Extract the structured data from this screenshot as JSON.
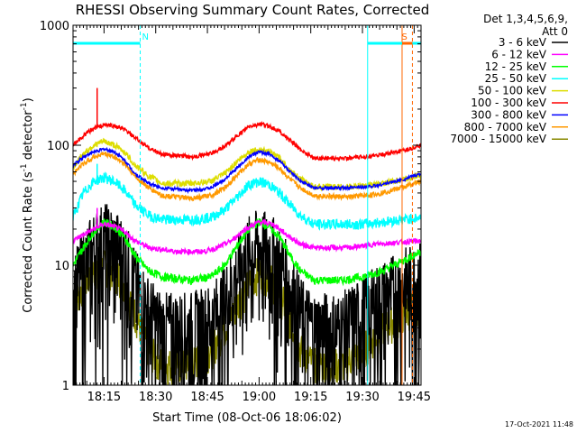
{
  "chart_data": {
    "type": "line",
    "title": "RHESSI Observing Summary Count Rates, Corrected",
    "xlabel": "Start Time (08-Oct-06 18:06:02)",
    "ylabel_parts": [
      "Corrected Count Rate (s",
      "-1",
      " detector",
      "-1",
      ")"
    ],
    "yscale": "log",
    "ylim": [
      1,
      1000
    ],
    "xlim_minutes": [
      0,
      101
    ],
    "x_ticks": [
      {
        "t": 9,
        "label": "18:15"
      },
      {
        "t": 24,
        "label": "18:30"
      },
      {
        "t": 39,
        "label": "18:45"
      },
      {
        "t": 54,
        "label": "19:00"
      },
      {
        "t": 69,
        "label": "19:15"
      },
      {
        "t": 84,
        "label": "19:30"
      },
      {
        "t": 99,
        "label": "19:45"
      }
    ],
    "y_ticks": [
      {
        "v": 1,
        "label": "1"
      },
      {
        "v": 10,
        "label": "10"
      },
      {
        "v": 100,
        "label": "100"
      },
      {
        "v": 1000,
        "label": "1000"
      }
    ],
    "legend": {
      "title": "Det 1,3,4,5,6,9,",
      "subtitle": "Att 0",
      "position": "right"
    },
    "series": [
      {
        "name": "3 - 6 keV",
        "color": "#000000",
        "amp": 1.0,
        "points": [
          [
            0,
            6
          ],
          [
            3,
            10
          ],
          [
            6,
            14
          ],
          [
            9,
            17
          ],
          [
            12,
            15
          ],
          [
            15,
            12
          ],
          [
            18,
            7
          ],
          [
            22,
            4
          ],
          [
            26,
            3
          ],
          [
            34,
            3
          ],
          [
            40,
            3.5
          ],
          [
            44,
            5
          ],
          [
            48,
            9
          ],
          [
            51,
            13
          ],
          [
            54,
            15
          ],
          [
            58,
            13
          ],
          [
            62,
            8
          ],
          [
            66,
            4
          ],
          [
            70,
            3
          ],
          [
            78,
            3
          ],
          [
            81,
            3.5
          ],
          [
            84,
            4
          ],
          [
            88,
            5
          ],
          [
            92,
            6
          ],
          [
            96,
            7
          ],
          [
            101,
            8
          ]
        ]
      },
      {
        "name": "6 - 12 keV",
        "color": "#ff00ff",
        "amp": 0.05,
        "points": [
          [
            0,
            16
          ],
          [
            3,
            18
          ],
          [
            6,
            20
          ],
          [
            9,
            22
          ],
          [
            12,
            21
          ],
          [
            15,
            19
          ],
          [
            18,
            16
          ],
          [
            22,
            14
          ],
          [
            30,
            13
          ],
          [
            38,
            13
          ],
          [
            42,
            14
          ],
          [
            46,
            16
          ],
          [
            50,
            20
          ],
          [
            54,
            23
          ],
          [
            58,
            22
          ],
          [
            62,
            18
          ],
          [
            66,
            15
          ],
          [
            70,
            14
          ],
          [
            80,
            14
          ],
          [
            88,
            15
          ],
          [
            101,
            16
          ]
        ]
      },
      {
        "name": "12 - 25 keV",
        "color": "#00ff00",
        "amp": 0.08,
        "points": [
          [
            0,
            10
          ],
          [
            3,
            14
          ],
          [
            6,
            19
          ],
          [
            9,
            23
          ],
          [
            12,
            21
          ],
          [
            15,
            17
          ],
          [
            18,
            12
          ],
          [
            22,
            9
          ],
          [
            26,
            8
          ],
          [
            34,
            7.5
          ],
          [
            40,
            8
          ],
          [
            44,
            10
          ],
          [
            48,
            15
          ],
          [
            51,
            20
          ],
          [
            54,
            23
          ],
          [
            57,
            21
          ],
          [
            60,
            17
          ],
          [
            63,
            12
          ],
          [
            66,
            9
          ],
          [
            70,
            7.5
          ],
          [
            78,
            7.5
          ],
          [
            84,
            8
          ],
          [
            90,
            9
          ],
          [
            96,
            11
          ],
          [
            101,
            13
          ]
        ]
      },
      {
        "name": "25 - 50 keV",
        "color": "#00ffff",
        "amp": 0.1,
        "points": [
          [
            0,
            25
          ],
          [
            3,
            40
          ],
          [
            6,
            50
          ],
          [
            9,
            54
          ],
          [
            12,
            50
          ],
          [
            15,
            42
          ],
          [
            18,
            32
          ],
          [
            22,
            26
          ],
          [
            26,
            24
          ],
          [
            34,
            24
          ],
          [
            40,
            25
          ],
          [
            44,
            29
          ],
          [
            48,
            38
          ],
          [
            51,
            47
          ],
          [
            54,
            50
          ],
          [
            57,
            47
          ],
          [
            60,
            40
          ],
          [
            63,
            32
          ],
          [
            66,
            26
          ],
          [
            70,
            22
          ],
          [
            78,
            22
          ],
          [
            84,
            22
          ],
          [
            90,
            23
          ],
          [
            101,
            25
          ]
        ]
      },
      {
        "name": "50 - 100 keV",
        "color": "#dddd00",
        "amp": 0.06,
        "points": [
          [
            0,
            65
          ],
          [
            3,
            85
          ],
          [
            6,
            100
          ],
          [
            9,
            108
          ],
          [
            12,
            100
          ],
          [
            15,
            88
          ],
          [
            18,
            68
          ],
          [
            22,
            55
          ],
          [
            26,
            48
          ],
          [
            34,
            48
          ],
          [
            40,
            50
          ],
          [
            44,
            58
          ],
          [
            48,
            75
          ],
          [
            51,
            88
          ],
          [
            54,
            92
          ],
          [
            57,
            88
          ],
          [
            60,
            78
          ],
          [
            63,
            62
          ],
          [
            66,
            52
          ],
          [
            70,
            45
          ],
          [
            80,
            45
          ],
          [
            88,
            47
          ],
          [
            96,
            52
          ],
          [
            101,
            57
          ]
        ]
      },
      {
        "name": "100 - 300 keV",
        "color": "#ff0000",
        "amp": 0.04,
        "points": [
          [
            0,
            100
          ],
          [
            3,
            120
          ],
          [
            6,
            138
          ],
          [
            9,
            148
          ],
          [
            12,
            145
          ],
          [
            15,
            135
          ],
          [
            18,
            115
          ],
          [
            22,
            95
          ],
          [
            26,
            84
          ],
          [
            34,
            80
          ],
          [
            40,
            85
          ],
          [
            44,
            98
          ],
          [
            48,
            122
          ],
          [
            51,
            142
          ],
          [
            54,
            150
          ],
          [
            57,
            145
          ],
          [
            60,
            130
          ],
          [
            63,
            110
          ],
          [
            66,
            92
          ],
          [
            70,
            78
          ],
          [
            80,
            78
          ],
          [
            88,
            82
          ],
          [
            96,
            90
          ],
          [
            101,
            100
          ]
        ]
      },
      {
        "name": "300 - 800 keV",
        "color": "#0000ff",
        "amp": 0.03,
        "points": [
          [
            0,
            68
          ],
          [
            3,
            80
          ],
          [
            6,
            88
          ],
          [
            9,
            93
          ],
          [
            12,
            88
          ],
          [
            15,
            75
          ],
          [
            18,
            58
          ],
          [
            22,
            48
          ],
          [
            26,
            44
          ],
          [
            34,
            42
          ],
          [
            40,
            44
          ],
          [
            44,
            52
          ],
          [
            48,
            66
          ],
          [
            51,
            80
          ],
          [
            54,
            88
          ],
          [
            57,
            84
          ],
          [
            60,
            74
          ],
          [
            63,
            60
          ],
          [
            66,
            50
          ],
          [
            70,
            44
          ],
          [
            80,
            44
          ],
          [
            88,
            46
          ],
          [
            96,
            52
          ],
          [
            101,
            58
          ]
        ]
      },
      {
        "name": "800 - 7000 keV",
        "color": "#ff9900",
        "amp": 0.05,
        "points": [
          [
            0,
            58
          ],
          [
            3,
            70
          ],
          [
            6,
            80
          ],
          [
            9,
            85
          ],
          [
            12,
            80
          ],
          [
            15,
            70
          ],
          [
            18,
            55
          ],
          [
            22,
            44
          ],
          [
            26,
            38
          ],
          [
            34,
            36
          ],
          [
            40,
            38
          ],
          [
            44,
            44
          ],
          [
            48,
            58
          ],
          [
            51,
            70
          ],
          [
            54,
            76
          ],
          [
            57,
            72
          ],
          [
            60,
            64
          ],
          [
            63,
            52
          ],
          [
            66,
            44
          ],
          [
            70,
            38
          ],
          [
            80,
            37
          ],
          [
            88,
            39
          ],
          [
            96,
            45
          ],
          [
            101,
            50
          ]
        ]
      },
      {
        "name": "7000 - 15000 keV",
        "color": "#888800",
        "amp": 0.35,
        "points": [
          [
            0,
            5
          ],
          [
            3,
            7
          ],
          [
            6,
            9
          ],
          [
            9,
            10
          ],
          [
            12,
            9
          ],
          [
            15,
            7
          ],
          [
            18,
            4
          ],
          [
            22,
            2
          ],
          [
            26,
            1.5
          ],
          [
            34,
            1.5
          ],
          [
            40,
            2
          ],
          [
            44,
            3
          ],
          [
            48,
            5
          ],
          [
            51,
            7
          ],
          [
            54,
            9
          ],
          [
            57,
            8
          ],
          [
            60,
            6
          ],
          [
            63,
            3.5
          ],
          [
            66,
            2
          ],
          [
            70,
            1.5
          ],
          [
            78,
            1.5
          ],
          [
            84,
            2
          ],
          [
            90,
            3
          ],
          [
            96,
            4
          ],
          [
            101,
            5
          ]
        ]
      }
    ],
    "spikes": [
      {
        "series": "100 - 300 keV",
        "t": 7,
        "value": 300
      },
      {
        "series": "25 - 50 keV",
        "t": 7,
        "value": 70
      },
      {
        "series": "6 - 12 keV",
        "t": 7,
        "value": 30
      },
      {
        "series": "100 - 300 keV",
        "t": 62,
        "value": 110
      }
    ],
    "flags": [
      {
        "label": "N",
        "color": "#00ffff",
        "start": 0,
        "end": 19.5,
        "fill": "#00ffff"
      },
      {
        "label": "",
        "color": "#00ffff",
        "start": 85.5,
        "end": 101,
        "fill": "#00ffff"
      },
      {
        "label": "S",
        "color": "#ff6600",
        "start": 95.5,
        "end": 98.5,
        "fill": "#ff6600"
      }
    ],
    "vlines": [
      {
        "t": 0,
        "color": "#00ffff",
        "dash": false
      },
      {
        "t": 19.5,
        "color": "#00ffff",
        "dash": true
      },
      {
        "t": 85.5,
        "color": "#00ffff",
        "dash": false
      },
      {
        "t": 95.5,
        "color": "#ff6600",
        "dash": false
      },
      {
        "t": 98.5,
        "color": "#ff6600",
        "dash": true
      },
      {
        "t": 101,
        "color": "#00ffff",
        "dash": true
      }
    ]
  },
  "footer": {
    "timestamp": "17-Oct-2021 11:48"
  }
}
